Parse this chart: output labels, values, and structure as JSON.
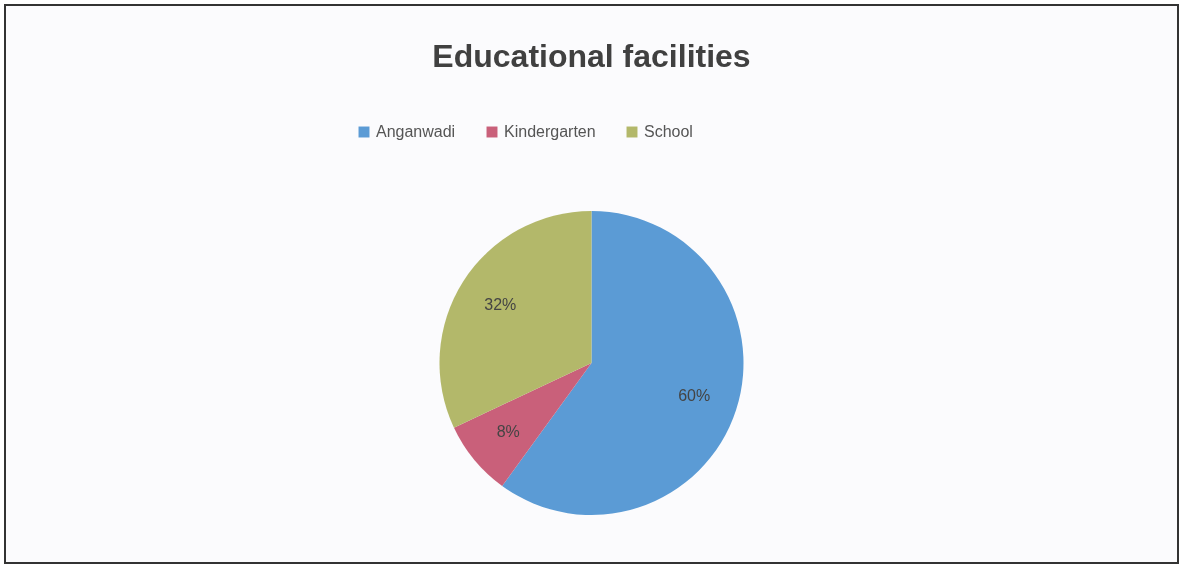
{
  "chart_data": {
    "type": "pie",
    "title": "Educational facilities",
    "categories": [
      "Anganwadi",
      "Kindergarten",
      "School"
    ],
    "values": [
      60,
      8,
      32
    ],
    "value_labels": [
      "60%",
      "8%",
      "32%"
    ],
    "colors": [
      "#5b9bd5",
      "#c9607a",
      "#b3b86a"
    ],
    "legend": "top"
  }
}
